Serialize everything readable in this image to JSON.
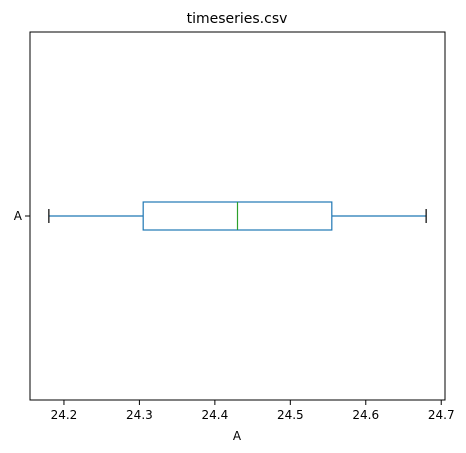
{
  "chart_data": {
    "type": "box",
    "title": "timeseries.csv",
    "xlabel": "A",
    "ylabel": "",
    "orientation": "horizontal",
    "xlim": [
      24.155,
      24.705
    ],
    "xticks": [
      "24.2",
      "24.3",
      "24.4",
      "24.5",
      "24.6",
      "24.7"
    ],
    "xtick_values": [
      24.2,
      24.3,
      24.4,
      24.5,
      24.6,
      24.7
    ],
    "grid": false,
    "series": [
      {
        "name": "A",
        "whisker_low": 24.18,
        "q1": 24.305,
        "median": 24.43,
        "q3": 24.555,
        "whisker_high": 24.68
      }
    ],
    "colors": {
      "box": "#1f77b4",
      "whisker": "#1f77b4",
      "median": "#2ca02c",
      "cap": "#000000",
      "axes": "#000000"
    }
  }
}
